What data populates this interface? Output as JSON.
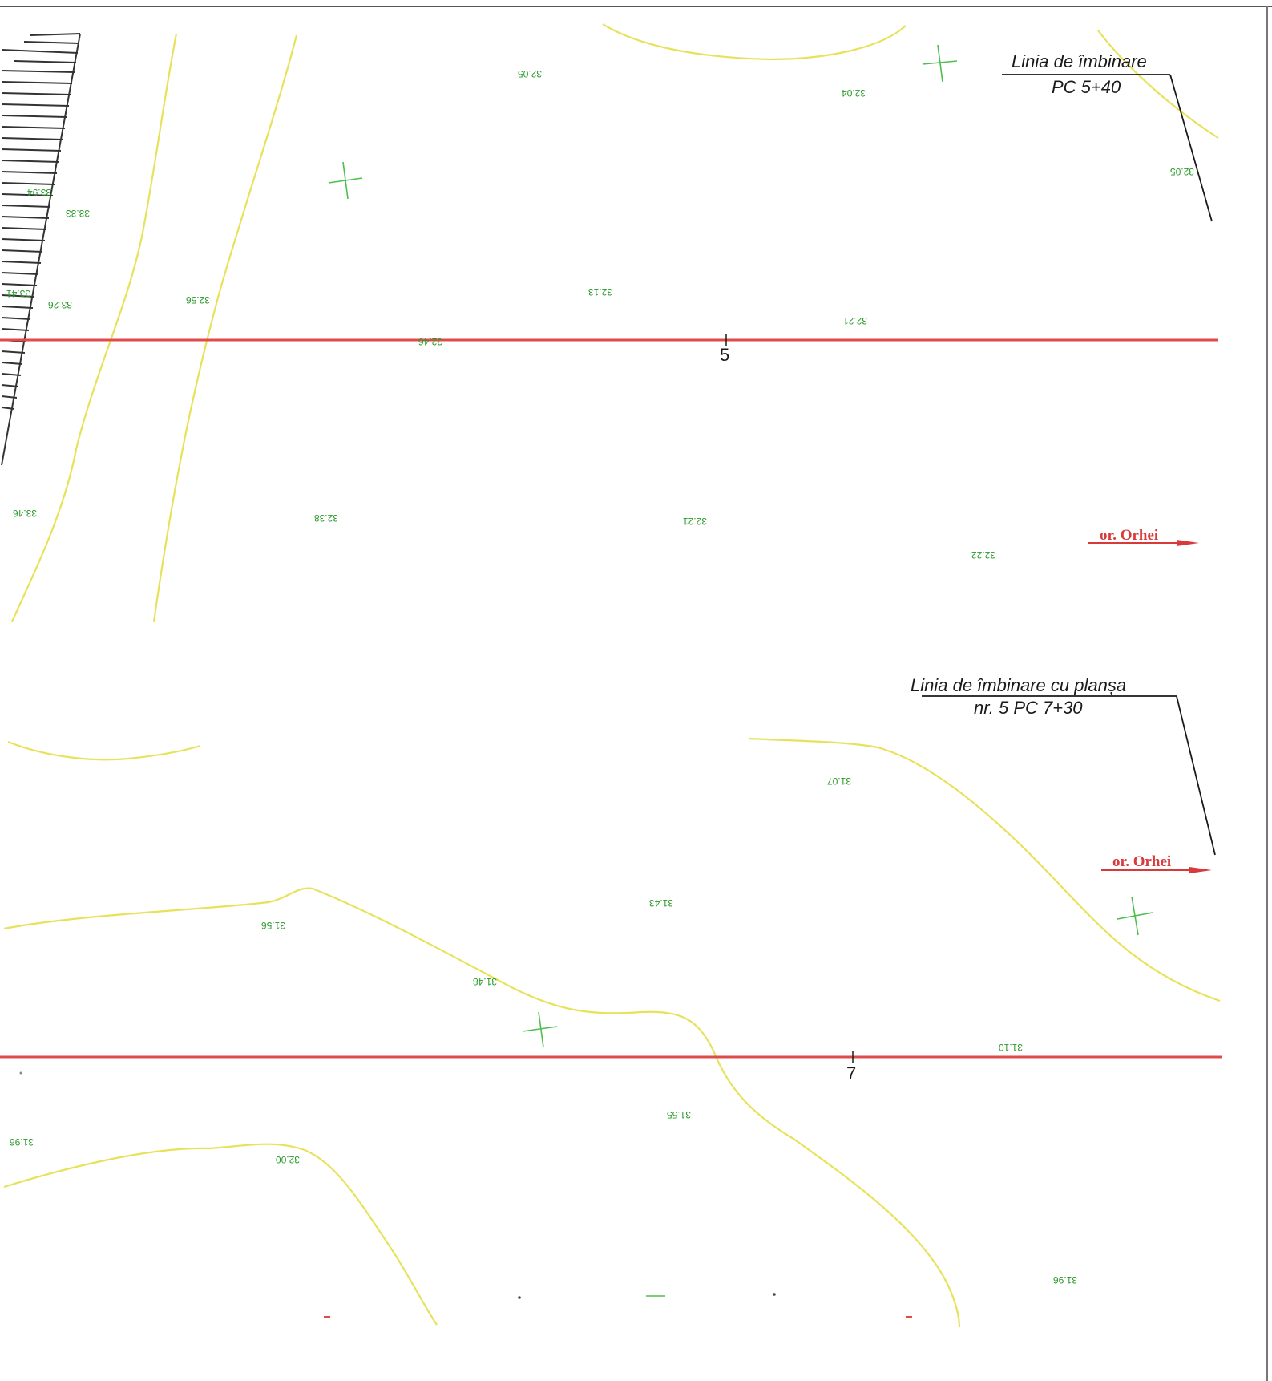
{
  "map": {
    "colors": {
      "background": "#ffffff",
      "contour": "#e7e25a",
      "axis": "#df4b4b",
      "spot_height": "#2a9a2a",
      "crosshair": "#4cbf4c",
      "annotation": "#1a1a1a",
      "direction": "#d8393b"
    },
    "match_lines": [
      {
        "line1": "Linia de îmbinare",
        "line2": "PC 5+40"
      },
      {
        "line1": "Linia de îmbinare cu planșa",
        "line2": "nr. 5  PC 7+30"
      }
    ],
    "direction_labels": [
      "or. Orhei",
      "or. Orhei"
    ],
    "stations": [
      "5",
      "7"
    ],
    "spot_heights": [
      "32.05",
      "32.04",
      "32.05",
      "33.33",
      "33.94",
      "33.26",
      "32.56",
      "32.13",
      "32.21",
      "33.41",
      "32.46",
      "33.46",
      "32.38",
      "32.21",
      "32.22",
      "31.07",
      "31.43",
      "31.56",
      "31.48",
      "31.10",
      "31.55",
      "31.96",
      "32.00",
      "31.96"
    ]
  }
}
